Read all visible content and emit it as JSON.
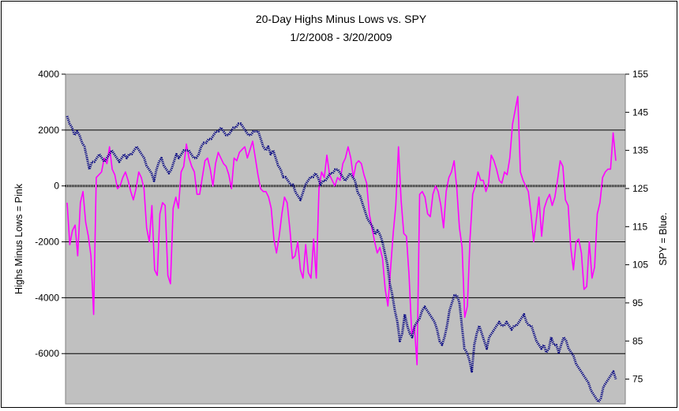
{
  "chart_data": {
    "type": "line",
    "title": "20-Day Highs Minus Lows vs. SPY",
    "subtitle": "1/2/2008 - 3/20/2009",
    "ylabel": "Highs Minus Lows = Pink",
    "y2label": "SPY = Blue.",
    "ylim": [
      -7800,
      4000
    ],
    "y2lim": [
      68.5,
      155
    ],
    "yticks": [
      4000,
      2000,
      0,
      -2000,
      -4000,
      -6000
    ],
    "y2ticks": [
      155,
      145,
      135,
      125,
      115,
      105,
      95,
      85,
      75
    ],
    "gridlines": [
      2000,
      -2000,
      -4000,
      -6000
    ],
    "plot_background": "#c0c0c0",
    "zero_line": "dotted",
    "colors": {
      "highs_minus_lows": "#ff00ff",
      "spy": "#000080"
    },
    "x_range": [
      "1/2/2008",
      "3/20/2009"
    ],
    "series": [
      {
        "axis": "left",
        "values": [
          -600,
          -2100,
          -1600,
          -1400,
          -2500,
          -600,
          -200,
          -1300,
          -1800,
          -2500,
          -4600,
          300,
          400,
          500,
          1000,
          800,
          1400,
          600,
          400,
          -100,
          0,
          300,
          500,
          200,
          -200,
          -500,
          -100,
          500,
          300,
          -100,
          -1500,
          -2000,
          -700,
          -3000,
          -3200,
          -1000,
          -600,
          -700,
          -3200,
          -3500,
          -800,
          -400,
          -800,
          500,
          700,
          1500,
          1000,
          700,
          500,
          -300,
          -300,
          300,
          900,
          1000,
          600,
          0,
          800,
          1200,
          1000,
          800,
          700,
          400,
          -100,
          1000,
          900,
          1200,
          1300,
          1400,
          1000,
          1300,
          1600,
          1000,
          400,
          -100,
          -200,
          -200,
          -400,
          -800,
          -1900,
          -2400,
          -1800,
          -1000,
          -400,
          -600,
          -1500,
          -2600,
          -2500,
          -2000,
          -3000,
          -3300,
          -2100,
          -3100,
          -3300,
          -1900,
          -3300,
          -100,
          500,
          300,
          1100,
          400,
          200,
          0,
          300,
          200,
          800,
          1000,
          1400,
          1000,
          300,
          800,
          900,
          800,
          400,
          100,
          -1000,
          -1500,
          -2000,
          -2400,
          -2200,
          -2600,
          -3700,
          -4300,
          -3000,
          -1700,
          -700,
          1400,
          -500,
          -1700,
          -1800,
          -3200,
          -5300,
          -5000,
          -6400,
          -300,
          -200,
          -400,
          -1000,
          -1100,
          -300,
          0,
          -200,
          -700,
          -1500,
          -200,
          300,
          500,
          900,
          -100,
          -1500,
          -2200,
          -4700,
          -4300,
          -1900,
          -300,
          0,
          500,
          200,
          200,
          -200,
          100,
          1100,
          900,
          600,
          200,
          100,
          500,
          400,
          1000,
          2200,
          2700,
          3200,
          500,
          200,
          0,
          -200,
          -1000,
          -2000,
          -1200,
          -400,
          -1800,
          -800,
          -500,
          -300,
          -700,
          -400,
          200,
          900,
          700,
          -500,
          -700,
          -2200,
          -3000,
          -2000,
          -1900,
          -2400,
          -3700,
          -3600,
          -2000,
          -3300,
          -2900,
          -1000,
          -600,
          300,
          500,
          600,
          600,
          1900,
          900
        ]
      },
      {
        "axis": "right",
        "values": [
          144,
          142,
          141,
          139,
          140,
          139,
          137,
          136,
          133,
          130,
          132,
          132,
          133,
          134,
          133,
          132,
          133,
          134,
          135,
          134,
          133,
          132,
          133,
          134,
          133,
          134,
          134,
          135,
          136,
          135,
          134,
          133,
          131,
          130,
          129,
          127,
          130,
          132,
          133,
          131,
          130,
          129,
          130,
          132,
          134,
          133,
          134,
          135,
          135,
          135,
          134,
          133,
          133,
          134,
          136,
          137,
          137,
          138,
          138,
          139,
          140,
          140,
          141,
          140,
          139,
          139,
          140,
          141,
          141,
          142,
          142,
          141,
          140,
          139,
          139,
          140,
          140,
          140,
          138,
          136,
          135,
          136,
          134,
          135,
          133,
          131,
          130,
          128,
          128,
          127,
          126,
          126,
          124,
          123,
          122,
          124,
          126,
          127,
          128,
          128,
          129,
          128,
          126,
          127,
          127,
          128,
          129,
          129,
          130,
          130,
          129,
          128,
          127,
          128,
          129,
          128,
          127,
          124,
          123,
          121,
          119,
          117,
          116,
          115,
          113,
          114,
          113,
          111,
          108,
          105,
          100,
          97,
          93,
          90,
          85,
          87,
          92,
          89,
          87,
          86,
          89,
          90,
          91,
          93,
          94,
          93,
          92,
          91,
          90,
          88,
          85,
          84,
          86,
          89,
          93,
          95,
          97,
          97,
          95,
          89,
          83,
          82,
          80,
          77,
          84,
          87,
          89,
          87,
          85,
          83,
          86,
          87,
          88,
          89,
          90,
          89,
          89,
          90,
          89,
          88,
          89,
          89,
          90,
          91,
          92,
          90,
          89,
          89,
          87,
          85,
          84,
          83,
          84,
          82,
          83,
          86,
          84,
          84,
          82,
          84,
          86,
          85,
          83,
          82,
          81,
          79,
          78,
          77,
          76,
          75,
          74,
          72,
          71,
          70,
          69,
          70,
          73,
          74,
          75,
          76,
          77,
          75
        ]
      }
    ]
  }
}
